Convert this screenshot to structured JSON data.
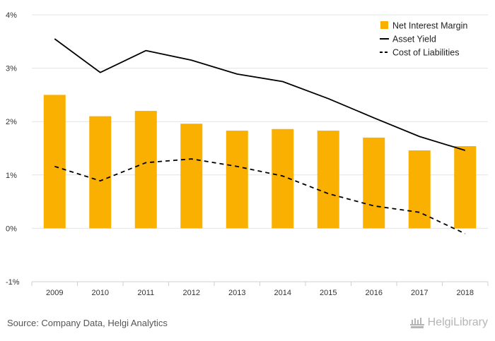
{
  "chart_data": {
    "type": "bar",
    "categories": [
      "2009",
      "2010",
      "2011",
      "2012",
      "2013",
      "2014",
      "2015",
      "2016",
      "2017",
      "2018"
    ],
    "series": [
      {
        "name": "Net Interest Margin",
        "kind": "bar",
        "style": "solid",
        "color": "#f9b000",
        "values": [
          2.5,
          2.1,
          2.2,
          1.96,
          1.83,
          1.86,
          1.83,
          1.7,
          1.46,
          1.54
        ]
      },
      {
        "name": "Asset Yield",
        "kind": "line",
        "style": "solid",
        "color": "#000000",
        "values": [
          3.55,
          2.92,
          3.33,
          3.15,
          2.89,
          2.75,
          2.43,
          2.07,
          1.72,
          1.46
        ]
      },
      {
        "name": "Cost of Liabilities",
        "kind": "line",
        "style": "dashed",
        "color": "#000000",
        "values": [
          1.16,
          0.89,
          1.23,
          1.3,
          1.16,
          0.98,
          0.65,
          0.42,
          0.3,
          -0.1
        ]
      }
    ],
    "yticks": [
      "4%",
      "3%",
      "2%",
      "1%",
      "0%",
      "-1%"
    ],
    "ylim": [
      -1,
      4
    ],
    "ylabel": "",
    "xlabel": "",
    "grid": true,
    "legend_position": "top-right"
  },
  "footer": {
    "source": "Source: Company Data, Helgi Analytics",
    "brand": "HelgiLibrary"
  }
}
